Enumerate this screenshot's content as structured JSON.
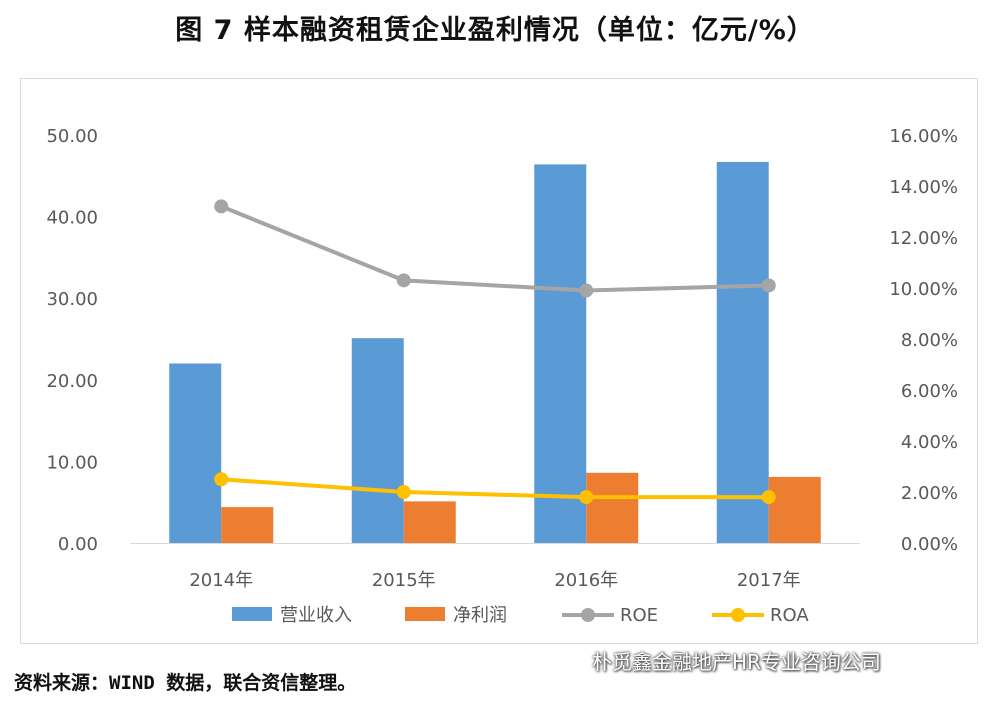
{
  "title": "图 7   样本融资租赁企业盈利情况（单位：亿元/%）",
  "source": "资料来源：WIND 数据，联合资信整理。",
  "watermark": "朴觅鑫金融地产HR专业咨询公司",
  "chart_data": {
    "type": "bar",
    "categories": [
      "2014年",
      "2015年",
      "2016年",
      "2017年"
    ],
    "series": [
      {
        "name": "营业收入",
        "kind": "bar",
        "axis": "left",
        "color": "#5B9BD5",
        "values": [
          22.0,
          25.1,
          46.4,
          46.7
        ]
      },
      {
        "name": "净利润",
        "kind": "bar",
        "axis": "left",
        "color": "#ED7D31",
        "values": [
          4.4,
          5.1,
          8.6,
          8.1
        ]
      },
      {
        "name": "ROE",
        "kind": "line",
        "axis": "right",
        "color": "#A5A5A5",
        "values": [
          13.2,
          10.3,
          9.9,
          10.1
        ]
      },
      {
        "name": "ROA",
        "kind": "line",
        "axis": "right",
        "color": "#FFC000",
        "values": [
          2.5,
          2.0,
          1.8,
          1.8
        ]
      }
    ],
    "left_axis": {
      "min": 0,
      "max": 50,
      "ticks": [
        "0.00",
        "10.00",
        "20.00",
        "30.00",
        "40.00",
        "50.00"
      ]
    },
    "right_axis": {
      "min": 0,
      "max": 16,
      "ticks": [
        "0.00%",
        "2.00%",
        "4.00%",
        "6.00%",
        "8.00%",
        "10.00%",
        "12.00%",
        "14.00%",
        "16.00%"
      ]
    },
    "legend_position": "bottom"
  }
}
